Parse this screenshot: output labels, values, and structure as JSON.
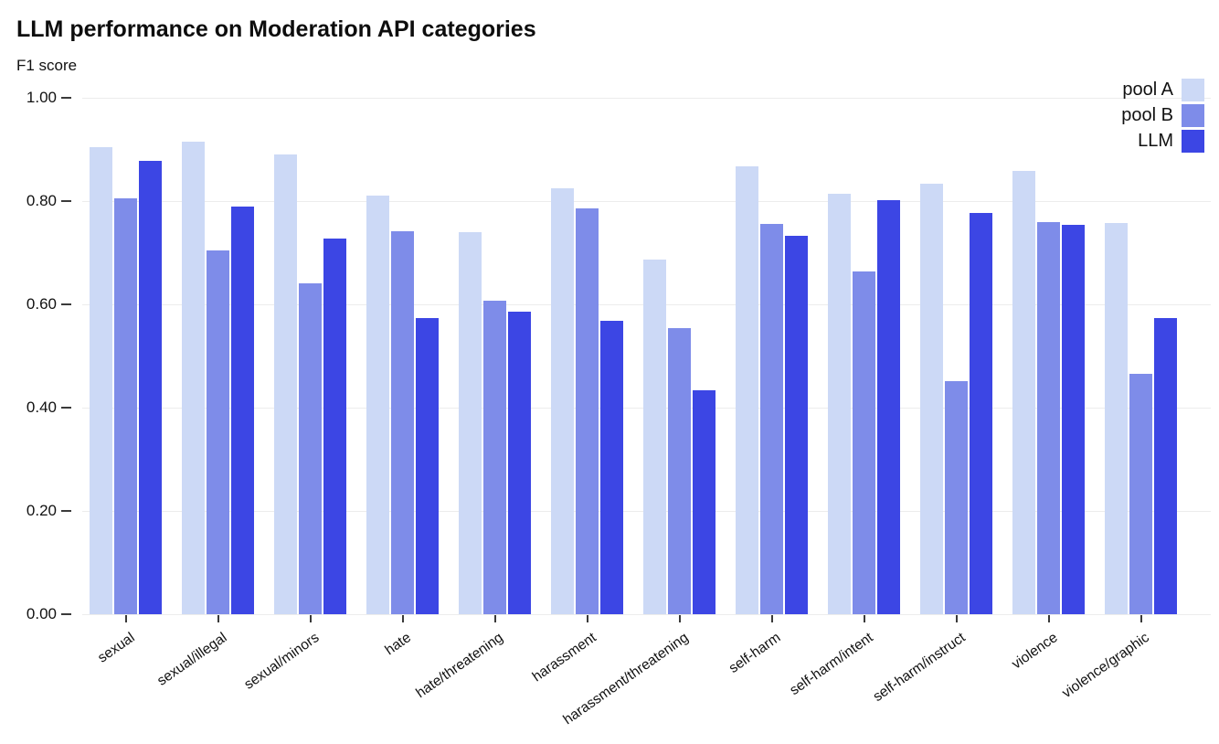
{
  "chart": {
    "title": "LLM performance on Moderation API categories",
    "y_axis_title": "F1 score"
  },
  "chart_data": {
    "type": "bar",
    "title": "LLM performance on Moderation API categories",
    "xlabel": "",
    "ylabel": "F1 score",
    "ylim": [
      0,
      1.0
    ],
    "ytick_labels": [
      "1.00",
      "0.80",
      "0.60",
      "0.40",
      "0.20",
      "0.00"
    ],
    "grid": true,
    "legend_position": "top-right",
    "categories": [
      "sexual",
      "sexual/illegal",
      "sexual/minors",
      "hate",
      "hate/threatening",
      "harassment",
      "harassment/threatening",
      "self-harm",
      "self-harm/intent",
      "self-harm/instruct",
      "violence",
      "violence/graphic"
    ],
    "series": [
      {
        "name": "pool A",
        "color": "#ccd9f6",
        "values": [
          0.905,
          0.915,
          0.89,
          0.81,
          0.74,
          0.825,
          0.687,
          0.868,
          0.814,
          0.834,
          0.859,
          0.758
        ]
      },
      {
        "name": "pool B",
        "color": "#7e8ce9",
        "values": [
          0.805,
          0.705,
          0.64,
          0.742,
          0.607,
          0.786,
          0.554,
          0.755,
          0.664,
          0.452,
          0.76,
          0.465
        ]
      },
      {
        "name": "LLM",
        "color": "#3c46e4",
        "values": [
          0.878,
          0.79,
          0.728,
          0.573,
          0.585,
          0.568,
          0.434,
          0.733,
          0.801,
          0.777,
          0.754,
          0.573
        ]
      }
    ]
  }
}
